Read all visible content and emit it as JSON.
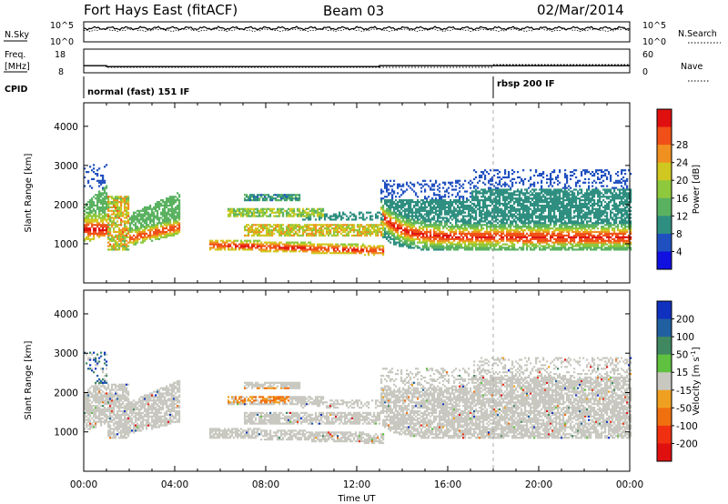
{
  "header": {
    "station": "Fort Hays East (fitACF)",
    "beam": "Beam 03",
    "date": "02/Mar/2014"
  },
  "top_panels": {
    "nsky_label": "N.Sky",
    "nsearch_label": "N.Search",
    "nsky_tick_top": "10^5",
    "nsky_tick_bottom": "10^0",
    "freq_label_1": "Freq.",
    "freq_label_2": "[MHz]",
    "freq_tick_top": "18",
    "freq_tick_bottom": "8",
    "nave_label": "Nave",
    "nave_tick_top": "60",
    "nave_tick_bottom": "0",
    "cpid_label": "CPID",
    "cpid_mode_1": "normal (fast) 151 IF",
    "cpid_mode_2": "rbsp 200 IF"
  },
  "chart_data": [
    {
      "type": "heatmap",
      "quantity": "Power",
      "ylabel": "Slant Range [km]",
      "ylim": [
        0,
        4600
      ],
      "yticks": [
        "1000",
        "2000",
        "3000",
        "4000"
      ],
      "colorbar_label": "Power [dB]",
      "colorbar_range": [
        0,
        32
      ],
      "colorbar_ticks": [
        "4",
        "8",
        "12",
        "16",
        "20",
        "24",
        "28"
      ],
      "colors_low_to_high": [
        "#1010e0",
        "#2050c0",
        "#2e8f80",
        "#5ab260",
        "#8ec83c",
        "#d0c820",
        "#f09020",
        "#f05018",
        "#e01010"
      ]
    },
    {
      "type": "heatmap",
      "quantity": "Velocity",
      "ylabel": "Slant Range [km]",
      "ylim": [
        0,
        4600
      ],
      "yticks": [
        "1000",
        "2000",
        "3000",
        "4000"
      ],
      "colorbar_label": "Velocity [m s",
      "colorbar_label_superscript": "-1",
      "colorbar_label_close": "]",
      "colorbar_range": [
        -250,
        250
      ],
      "colorbar_ticks": [
        "200",
        "100",
        "50",
        "15",
        "-15",
        "-50",
        "-100",
        "-200"
      ],
      "colors_high_to_low": [
        "#1030c0",
        "#2060a0",
        "#408860",
        "#60c040",
        "#c8c8c0",
        "#f0a020",
        "#f07010",
        "#f03010",
        "#e01010"
      ]
    }
  ],
  "x_axis": {
    "label": "Time UT",
    "ticks": [
      "00:00",
      "04:00",
      "08:00",
      "12:00",
      "16:00",
      "20:00",
      "00:00"
    ],
    "range_hours": [
      0,
      24
    ]
  },
  "markers": {
    "mode_change_hour": 18.0
  },
  "freq_trace": [
    {
      "from_h": 0,
      "to_h": 1.0,
      "mhz": 11.0
    },
    {
      "from_h": 1.0,
      "to_h": 13.0,
      "mhz": 10.6
    },
    {
      "from_h": 13.0,
      "to_h": 24.0,
      "mhz": 11.0
    }
  ]
}
